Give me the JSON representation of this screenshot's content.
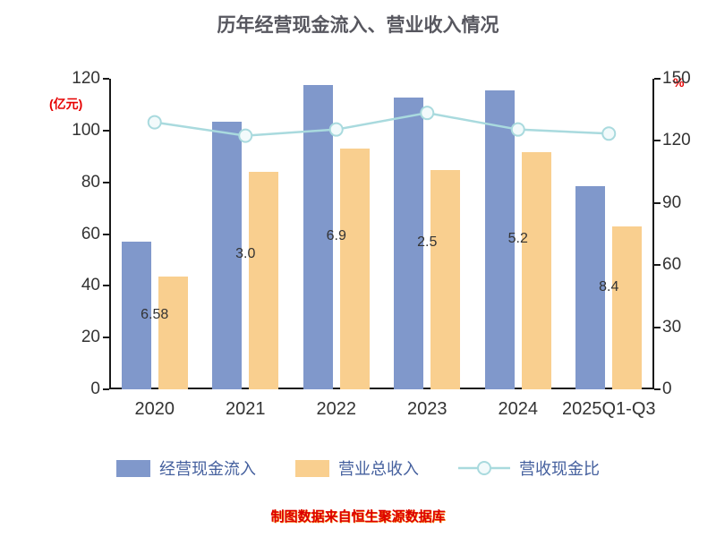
{
  "title": "历年经营现金流入、营业收入情况",
  "footer": "制图数据来自恒生聚源数据库",
  "left_axis": {
    "unit": "(亿元)",
    "ticks": [
      0,
      20,
      40,
      60,
      80,
      100,
      120
    ]
  },
  "right_axis": {
    "unit": "%",
    "ticks": [
      0,
      30,
      60,
      90,
      120,
      150
    ]
  },
  "legend": [
    {
      "label": "经营现金流入",
      "type": "bar",
      "color": "#8098cb"
    },
    {
      "label": "营业总收入",
      "type": "bar",
      "color": "#f9cf8f"
    },
    {
      "label": "营收现金比",
      "type": "line",
      "color": "#a9dade"
    }
  ],
  "chart_data": {
    "type": "bar",
    "categories": [
      "2020",
      "2021",
      "2022",
      "2023",
      "2024",
      "2025Q1-Q3"
    ],
    "series": [
      {
        "name": "经营现金流入",
        "type": "bar",
        "axis": "left",
        "color": "#8098cb",
        "values": [
          57,
          103.5,
          117.5,
          112.8,
          115.5,
          78.4
        ]
      },
      {
        "name": "营业总收入",
        "type": "bar",
        "axis": "left",
        "color": "#f9cf8f",
        "values": [
          43.5,
          84,
          93,
          84.8,
          91.5,
          62.8
        ]
      },
      {
        "name": "营收现金比",
        "type": "line",
        "axis": "right",
        "color": "#a9dade",
        "marker_fill": "#f2fafb",
        "values": [
          129,
          122.5,
          125.5,
          133.5,
          125.5,
          123.5
        ]
      }
    ],
    "bar_labels": [
      "6.58",
      "3.0",
      "6.9",
      "2.5",
      "5.2",
      "8.4"
    ],
    "left_ylim": [
      0,
      120
    ],
    "right_ylim": [
      0,
      150
    ],
    "grid": false,
    "legend_position": "bottom"
  }
}
